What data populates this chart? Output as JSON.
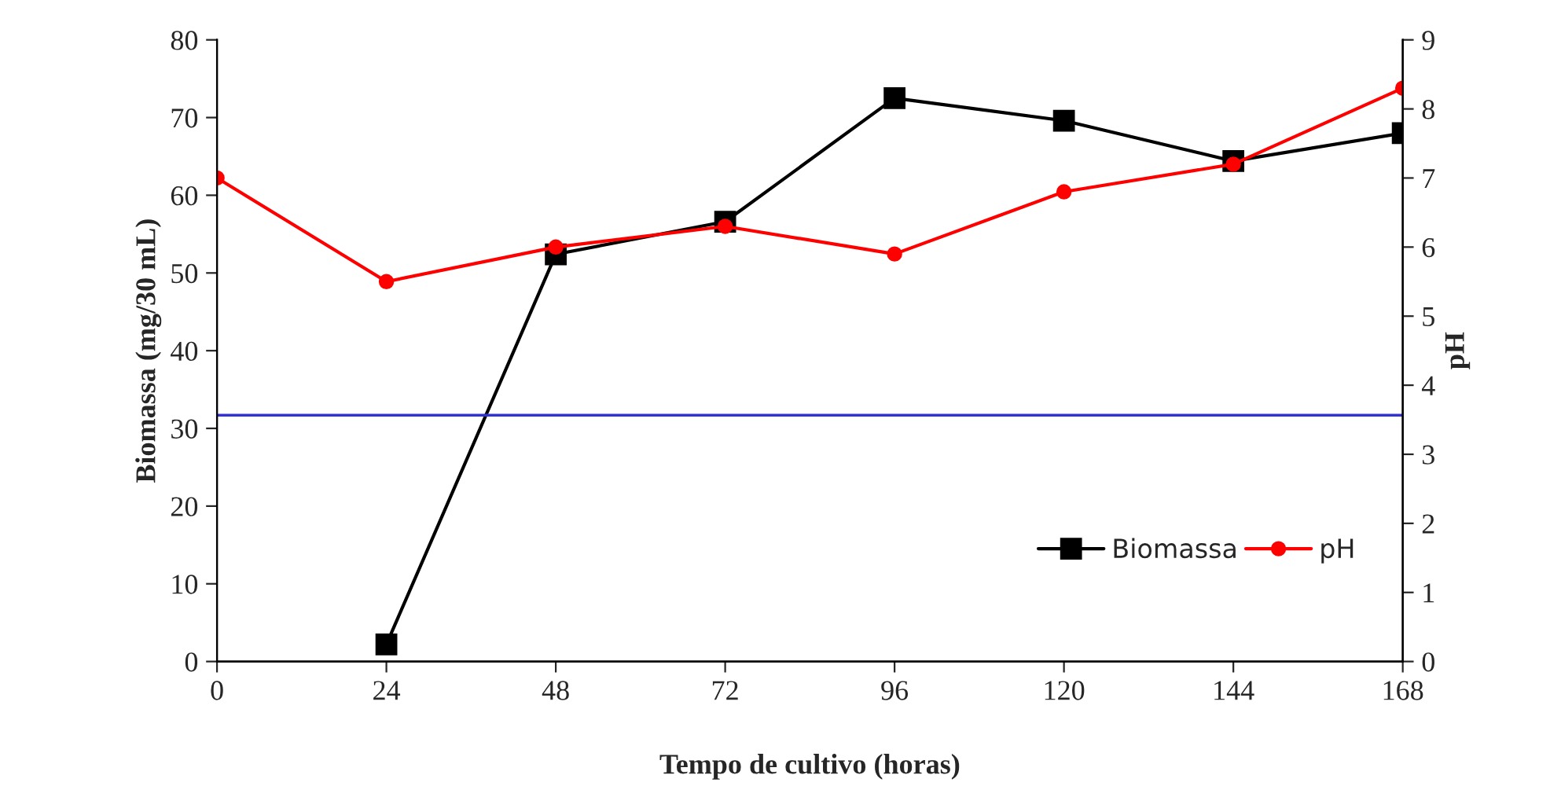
{
  "chart_data": {
    "type": "line",
    "xlabel": "Tempo de cultivo (horas)",
    "ylabel": "Biomassa (mg/30 mL)",
    "y2label": "pH",
    "x": [
      0,
      24,
      48,
      72,
      96,
      120,
      144,
      168
    ],
    "series": [
      {
        "name": "Biomassa",
        "color": "#000000",
        "marker": "square",
        "values": [
          null,
          2.2,
          52.4,
          56.6,
          72.5,
          69.6,
          64.4,
          68
        ]
      },
      {
        "name": "pH",
        "color": "#ff0000",
        "marker": "circle",
        "axis": "y2",
        "values": [
          7.0,
          5.5,
          6.0,
          6.3,
          5.9,
          6.8,
          7.2,
          8.3
        ]
      }
    ],
    "xlim": [
      0,
      168
    ],
    "xticks": [
      0,
      24,
      48,
      72,
      96,
      120,
      144,
      168
    ],
    "ylim": [
      0,
      80
    ],
    "yticks": [
      0,
      10,
      20,
      30,
      40,
      50,
      60,
      70,
      80
    ],
    "y2lim": [
      0,
      9
    ],
    "y2ticks": [
      0,
      1,
      2,
      3,
      4,
      5,
      6,
      7,
      8,
      9
    ],
    "ref_lines": [
      {
        "axis": "y",
        "value": 31.7,
        "color": "#3333cc"
      }
    ],
    "legend": "bottom right",
    "grid": false,
    "line_style": "solid"
  }
}
